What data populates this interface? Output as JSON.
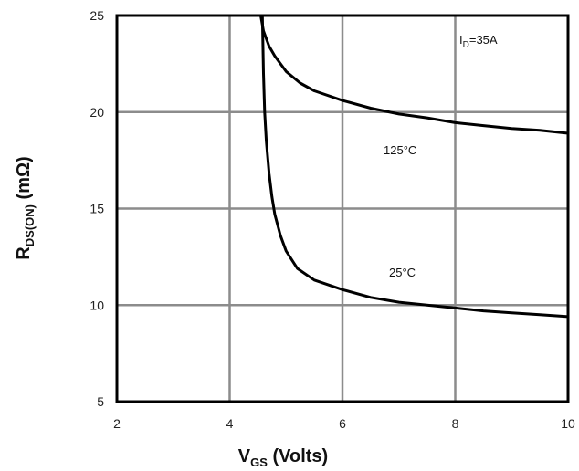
{
  "chart_data": {
    "type": "line",
    "x_label": {
      "main": "V",
      "sub": "GS",
      "suffix": " (Volts)"
    },
    "y_label": {
      "main": "R",
      "sub": "DS(ON)",
      "suffix": " (mΩ)"
    },
    "xlim": [
      2,
      10
    ],
    "ylim": [
      5,
      25
    ],
    "x_ticks": [
      2,
      4,
      6,
      8,
      10
    ],
    "y_ticks": [
      5,
      10,
      15,
      20,
      25
    ],
    "grid": true,
    "annotation": {
      "main": "I",
      "sub": "D",
      "suffix": "=35A"
    },
    "series": [
      {
        "label": "125°C",
        "color": "#000000",
        "points": [
          [
            4.55,
            25.0
          ],
          [
            4.6,
            24.2
          ],
          [
            4.7,
            23.4
          ],
          [
            4.8,
            22.9
          ],
          [
            5.0,
            22.1
          ],
          [
            5.25,
            21.5
          ],
          [
            5.5,
            21.1
          ],
          [
            6.0,
            20.6
          ],
          [
            6.5,
            20.2
          ],
          [
            7.0,
            19.9
          ],
          [
            7.5,
            19.7
          ],
          [
            8.0,
            19.45
          ],
          [
            8.5,
            19.3
          ],
          [
            9.0,
            19.15
          ],
          [
            9.5,
            19.05
          ],
          [
            10.0,
            18.9
          ]
        ]
      },
      {
        "label": "25°C",
        "color": "#000000",
        "points": [
          [
            4.58,
            25.0
          ],
          [
            4.6,
            22.0
          ],
          [
            4.62,
            20.0
          ],
          [
            4.65,
            18.5
          ],
          [
            4.7,
            16.8
          ],
          [
            4.75,
            15.6
          ],
          [
            4.8,
            14.7
          ],
          [
            4.9,
            13.6
          ],
          [
            5.0,
            12.8
          ],
          [
            5.2,
            11.9
          ],
          [
            5.5,
            11.3
          ],
          [
            6.0,
            10.8
          ],
          [
            6.5,
            10.4
          ],
          [
            7.0,
            10.15
          ],
          [
            7.5,
            10.0
          ],
          [
            8.0,
            9.85
          ],
          [
            8.5,
            9.7
          ],
          [
            9.0,
            9.6
          ],
          [
            9.5,
            9.5
          ],
          [
            10.0,
            9.4
          ]
        ]
      }
    ]
  }
}
